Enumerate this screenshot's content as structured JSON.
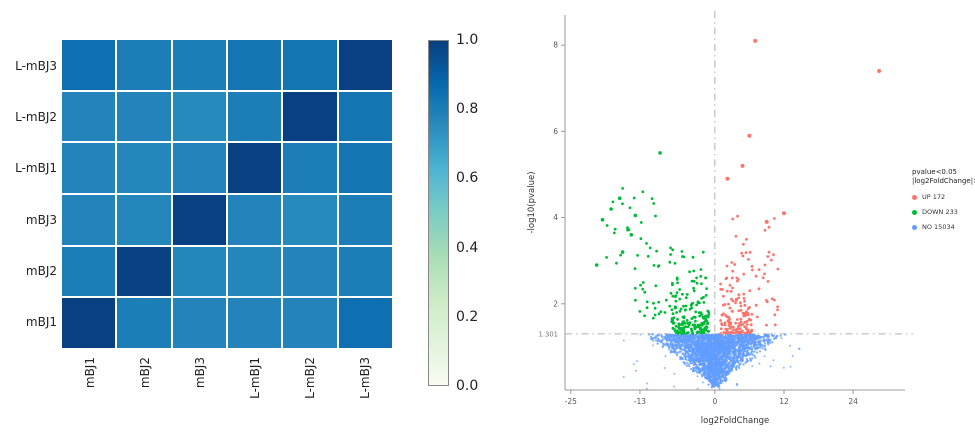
{
  "page": {
    "background": "#ffffff"
  },
  "chart_data": [
    {
      "type": "heatmap",
      "title": "",
      "description": "sample correlation heatmap",
      "row_labels": [
        "L-mBJ3",
        "L-mBJ2",
        "L-mBJ1",
        "mBJ3",
        "mBJ2",
        "mBJ1"
      ],
      "col_labels": [
        "mBJ1",
        "mBJ2",
        "mBJ3",
        "L-mBJ1",
        "L-mBJ2",
        "L-mBJ3"
      ],
      "values": [
        [
          0.85,
          0.8,
          0.8,
          0.83,
          0.83,
          1.0
        ],
        [
          0.78,
          0.78,
          0.76,
          0.8,
          1.0,
          0.83
        ],
        [
          0.78,
          0.77,
          0.78,
          1.0,
          0.8,
          0.83
        ],
        [
          0.78,
          0.77,
          1.0,
          0.78,
          0.76,
          0.8
        ],
        [
          0.8,
          1.0,
          0.77,
          0.77,
          0.78,
          0.8
        ],
        [
          1.0,
          0.8,
          0.78,
          0.78,
          0.78,
          0.85
        ]
      ],
      "colorbar": {
        "min": 0.0,
        "max": 1.0,
        "ticks": [
          "1.0",
          "0.8",
          "0.6",
          "0.4",
          "0.2",
          "0.0"
        ]
      },
      "colormap": "GnBu",
      "colormap_stops": [
        {
          "t": 0.0,
          "c": "#f7fcf0"
        },
        {
          "t": 0.125,
          "c": "#e0f3db"
        },
        {
          "t": 0.25,
          "c": "#ccebc5"
        },
        {
          "t": 0.375,
          "c": "#a8ddb5"
        },
        {
          "t": 0.5,
          "c": "#7bccc4"
        },
        {
          "t": 0.625,
          "c": "#4eb3d3"
        },
        {
          "t": 0.75,
          "c": "#2b8cbe"
        },
        {
          "t": 0.875,
          "c": "#0868ac"
        },
        {
          "t": 1.0,
          "c": "#084081"
        }
      ]
    },
    {
      "type": "scatter",
      "subtype": "volcano",
      "title": "",
      "xlabel": "log2FoldChange",
      "ylabel": "-log10(pvalue)",
      "xlim": [
        -26,
        33
      ],
      "ylim": [
        0,
        8.7
      ],
      "x_ticks": [
        {
          "value": -25,
          "label": "-25"
        },
        {
          "value": -13,
          "label": "-13"
        },
        {
          "value": 0,
          "label": "0"
        },
        {
          "value": 12,
          "label": "12"
        },
        {
          "value": 24,
          "label": "24"
        }
      ],
      "y_ticks": [
        {
          "value": 2,
          "label": "2"
        },
        {
          "value": 4,
          "label": "4"
        },
        {
          "value": 6,
          "label": "6"
        },
        {
          "value": 8,
          "label": "8"
        }
      ],
      "thresholds": {
        "hline_y": 1.301,
        "hline_label": "1.301",
        "vline_x": 0,
        "line_color": "#b0b0b0"
      },
      "legend": {
        "title_lines": [
          "pvalue<0.05",
          "|log2FoldChange|>1"
        ],
        "entries": [
          {
            "name": "UP",
            "label": "UP 172",
            "count": 172,
            "color": "#F8766D"
          },
          {
            "name": "DOWN",
            "label": "DOWN 233",
            "count": 233,
            "color": "#00BA38"
          },
          {
            "name": "NO",
            "label": "NO 15034",
            "count": 15034,
            "color": "#619CFF"
          }
        ]
      },
      "series": [
        {
          "name": "NO",
          "color": "#619CFF",
          "count": 15034,
          "plotted_points": 2600,
          "shape": {
            "type": "inverted-triangle",
            "y_top": 1.29,
            "halfwidth_top": 13.0,
            "taper_exp": 1.15
          }
        },
        {
          "name": "DOWN",
          "color": "#00BA38",
          "count": 233,
          "x_range": [
            -21,
            -1
          ],
          "y_range": [
            1.31,
            5.5
          ],
          "outliers": [
            [
              -9.5,
              5.5
            ],
            [
              -18,
              4.2
            ],
            [
              -16.5,
              4.45
            ],
            [
              -19.5,
              3.95
            ],
            [
              -14.5,
              3.6
            ],
            [
              -16,
              3.2
            ],
            [
              -20.5,
              2.9
            ],
            [
              -13.8,
              4.05
            ]
          ]
        },
        {
          "name": "UP",
          "color": "#F8766D",
          "count": 172,
          "x_range": [
            1,
            29
          ],
          "y_range": [
            1.31,
            8.1
          ],
          "outliers": [
            [
              7.0,
              8.1
            ],
            [
              28.5,
              7.4
            ],
            [
              6.0,
              5.9
            ],
            [
              4.8,
              5.2
            ],
            [
              2.2,
              4.9
            ],
            [
              12.0,
              4.1
            ],
            [
              9.0,
              3.9
            ]
          ]
        }
      ]
    }
  ]
}
